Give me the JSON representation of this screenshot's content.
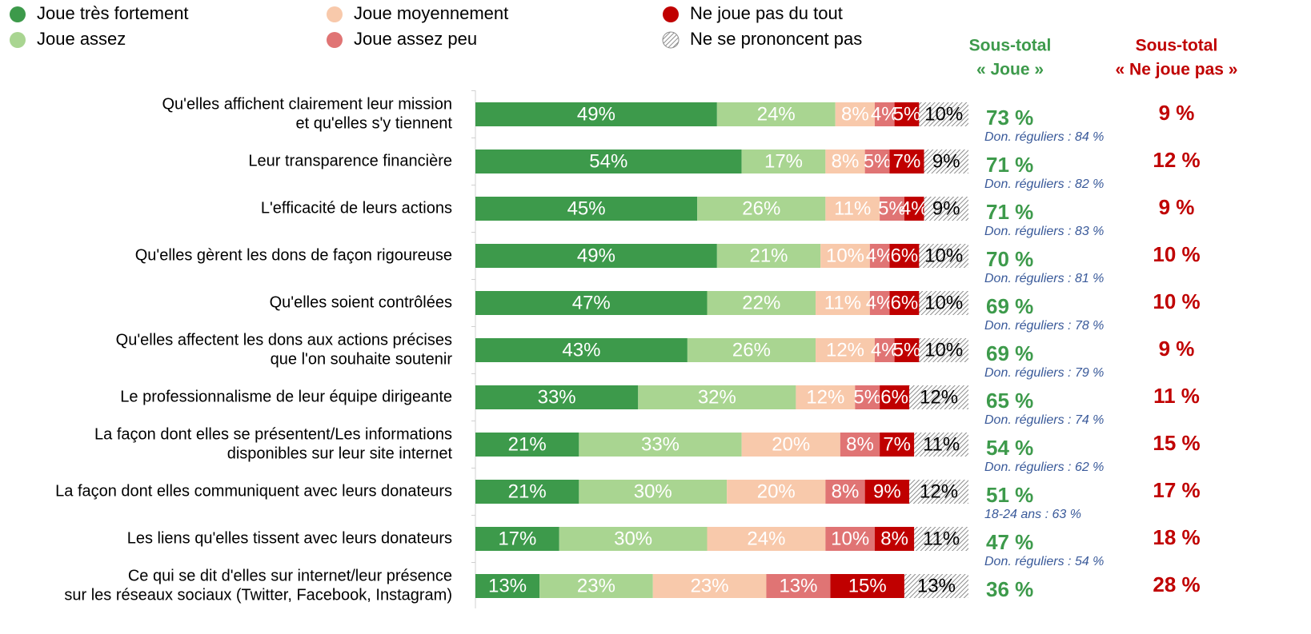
{
  "chart_data": {
    "type": "bar",
    "orientation": "horizontal",
    "stacked": true,
    "xlim": [
      0,
      100
    ],
    "categories": [
      [
        "Qu'elles affichent clairement leur mission",
        "et qu'elles s'y tiennent"
      ],
      [
        "Leur transparence financière"
      ],
      [
        "L'efficacité de leurs actions"
      ],
      [
        "Qu'elles gèrent les dons de façon rigoureuse"
      ],
      [
        "Qu'elles soient contrôlées"
      ],
      [
        "Qu'elles affectent les dons aux actions précises",
        "que l'on souhaite soutenir"
      ],
      [
        "Le professionnalisme de leur équipe dirigeante"
      ],
      [
        "La façon dont elles se présentent/Les informations",
        "disponibles sur leur site internet"
      ],
      [
        "La façon dont elles communiquent avec leurs donateurs"
      ],
      [
        "Les liens qu'elles tissent avec leurs donateurs"
      ],
      [
        "Ce qui se dit d'elles sur internet/leur présence",
        "sur les réseaux sociaux (Twitter, Facebook, Instagram)"
      ]
    ],
    "series": [
      {
        "name": "Joue très fortement",
        "color": "#3d9a4b",
        "label_color": "#ffffff",
        "values": [
          49,
          54,
          45,
          49,
          47,
          43,
          33,
          21,
          21,
          17,
          13
        ],
        "value_labels": [
          "49%",
          "54%",
          "45%",
          "49%",
          "47%",
          "43%",
          "33%",
          "21%",
          "21%",
          "17%",
          "13%"
        ]
      },
      {
        "name": "Joue assez",
        "color": "#a9d591",
        "label_color": "#ffffff",
        "values": [
          24,
          17,
          26,
          21,
          22,
          26,
          32,
          33,
          30,
          30,
          23
        ],
        "value_labels": [
          "24%",
          "17%",
          "26%",
          "21%",
          "22%",
          "26%",
          "32%",
          "33%",
          "30%",
          "30%",
          "23%"
        ]
      },
      {
        "name": "Joue moyennement",
        "color": "#f8c9ab",
        "label_color": "#ffffff",
        "values": [
          8,
          8,
          11,
          10,
          11,
          12,
          12,
          20,
          20,
          24,
          23
        ],
        "value_labels": [
          "8%",
          "8%",
          "11%",
          "10%",
          "11%",
          "12%",
          "12%",
          "20%",
          "20%",
          "24%",
          "23%"
        ]
      },
      {
        "name": "Joue assez peu",
        "color": "#e07474",
        "label_color": "#ffffff",
        "values": [
          4,
          5,
          5,
          4,
          4,
          4,
          5,
          8,
          8,
          10,
          13
        ],
        "value_labels": [
          "4%",
          "5%",
          "5%",
          "4%",
          "4%",
          "4%",
          "5%",
          "8%",
          "8%",
          "10%",
          "13%"
        ]
      },
      {
        "name": "Ne joue pas du tout",
        "color": "#c00000",
        "label_color": "#ffffff",
        "values": [
          5,
          7,
          4,
          6,
          6,
          5,
          6,
          7,
          9,
          8,
          15
        ],
        "value_labels": [
          "5%",
          "7%",
          "4%",
          "6%",
          "6%",
          "5%",
          "6%",
          "7%",
          "9%",
          "8%",
          "15%"
        ]
      },
      {
        "name": "Ne se prononcent pas",
        "color": "#8c8c8c",
        "hatch": true,
        "label_color": "#000000",
        "values": [
          10,
          9,
          9,
          10,
          10,
          10,
          12,
          11,
          12,
          11,
          13
        ],
        "value_labels": [
          "10%",
          "9%",
          "9%",
          "10%",
          "10%",
          "10%",
          "12%",
          "11%",
          "12%",
          "11%",
          "13%"
        ]
      }
    ],
    "subtotals": [
      {
        "header": [
          "Sous-total",
          "« Joue »"
        ],
        "color": "#3d9a4b",
        "labels": [
          "73 %",
          "71 %",
          "71 %",
          "70 %",
          "69 %",
          "69 %",
          "65 %",
          "54 %",
          "51 %",
          "47 %",
          "36 %"
        ],
        "notes": [
          null,
          "Don. réguliers : 84 %",
          "Don. réguliers : 82 %",
          "Don. réguliers : 83 %",
          "Don. réguliers : 81 %",
          "Don. réguliers : 78 %",
          "Don. réguliers : 79 %",
          "Don. réguliers : 74 %",
          "Don. réguliers : 62 %",
          "18-24 ans : 63 %",
          "Don. réguliers : 54 %"
        ],
        "note_color": "#3a5a9a"
      },
      {
        "header": [
          "Sous-total",
          "« Ne joue pas »"
        ],
        "color": "#c00000",
        "labels": [
          "9 %",
          "12 %",
          "9 %",
          "10 %",
          "10 %",
          "9 %",
          "11 %",
          "15 %",
          "17 %",
          "18 %",
          "28 %"
        ]
      }
    ]
  }
}
